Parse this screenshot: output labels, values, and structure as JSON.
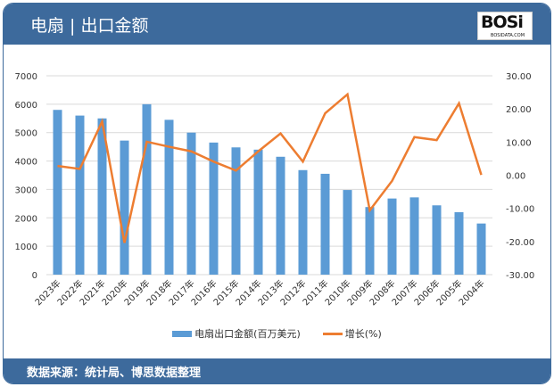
{
  "header": {
    "title": "电扇 | 出口金额",
    "logo_text": "BOSi",
    "logo_sub": "BOSIDATA.COM"
  },
  "footer": {
    "source": "数据来源：统计局、博思数据整理"
  },
  "colors": {
    "bar": "#5b9bd5",
    "line": "#ed7d31",
    "header": "#3d6a9c"
  },
  "chart_data": {
    "type": "bar+line",
    "categories": [
      "2023年",
      "2022年",
      "2021年",
      "2020年",
      "2019年",
      "2018年",
      "2017年",
      "2016年",
      "2015年",
      "2014年",
      "2013年",
      "2012年",
      "2011年",
      "2010年",
      "2009年",
      "2008年",
      "2007年",
      "2006年",
      "2005年",
      "2004年"
    ],
    "series": [
      {
        "name": "电扇出口金额(百万美元)",
        "type": "bar",
        "axis": "left",
        "values": [
          5800,
          5600,
          5500,
          4720,
          6000,
          5450,
          5000,
          4650,
          4480,
          4400,
          4150,
          3680,
          3550,
          2980,
          2380,
          2680,
          2720,
          2440,
          2200,
          1800
        ]
      },
      {
        "name": "增长(%)",
        "type": "line",
        "axis": "right",
        "values": [
          2.8,
          1.9,
          16.2,
          -20.4,
          10.1,
          8.6,
          7.2,
          4.1,
          1.4,
          7.2,
          12.6,
          4.1,
          18.7,
          24.4,
          -10.6,
          -1.7,
          11.5,
          10.6,
          21.7,
          0.1
        ]
      }
    ],
    "left_axis": {
      "min": 0,
      "max": 7000,
      "ticks": [
        "0",
        "1000",
        "2000",
        "3000",
        "4000",
        "5000",
        "6000",
        "7000"
      ]
    },
    "right_axis": {
      "min": -30,
      "max": 30,
      "ticks": [
        "-30.00",
        "-20.00",
        "-10.00",
        "0.00",
        "10.00",
        "20.00",
        "30.00"
      ]
    },
    "grid": true,
    "legend": "bottom"
  }
}
